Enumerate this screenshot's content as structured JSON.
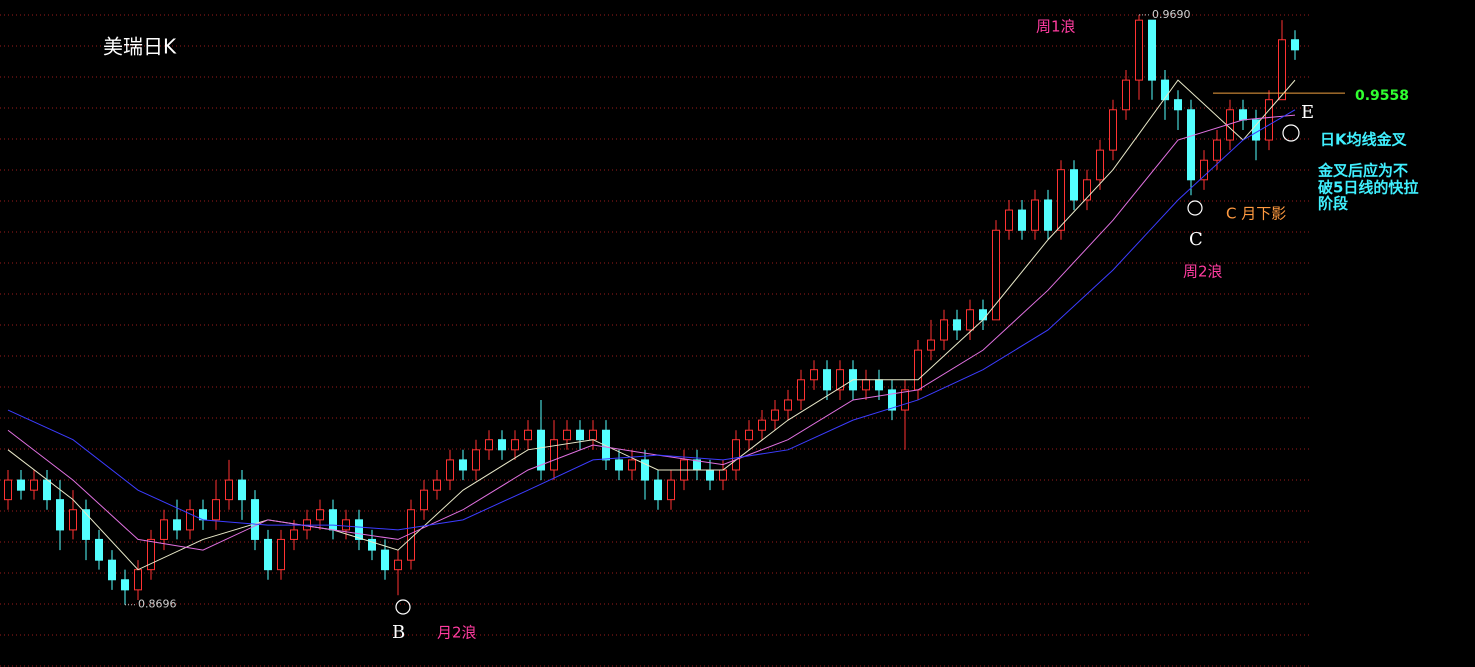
{
  "chart_data": {
    "type": "candlestick",
    "title": "美瑞日K",
    "ylim": [
      0.8591,
      0.9715
    ],
    "grid": true,
    "up_color": "#ff3232",
    "down_color": "#54ffff",
    "ohlc": [
      [
        0.8873,
        0.8923,
        0.8856,
        0.8906
      ],
      [
        0.8906,
        0.8923,
        0.8873,
        0.8889
      ],
      [
        0.8889,
        0.8923,
        0.8873,
        0.8906
      ],
      [
        0.8906,
        0.8923,
        0.8856,
        0.8873
      ],
      [
        0.8873,
        0.8906,
        0.8788,
        0.8822
      ],
      [
        0.8822,
        0.8889,
        0.8806,
        0.8856
      ],
      [
        0.8856,
        0.8873,
        0.8771,
        0.8806
      ],
      [
        0.8806,
        0.8822,
        0.8755,
        0.8771
      ],
      [
        0.8771,
        0.8788,
        0.8721,
        0.8738
      ],
      [
        0.8738,
        0.8755,
        0.8696,
        0.8721
      ],
      [
        0.8721,
        0.8771,
        0.8704,
        0.8755
      ],
      [
        0.8755,
        0.8822,
        0.8738,
        0.8806
      ],
      [
        0.8806,
        0.8856,
        0.8788,
        0.8839
      ],
      [
        0.8839,
        0.8873,
        0.8806,
        0.8822
      ],
      [
        0.8822,
        0.8873,
        0.8806,
        0.8856
      ],
      [
        0.8856,
        0.8873,
        0.8822,
        0.8839
      ],
      [
        0.8839,
        0.8906,
        0.8822,
        0.8873
      ],
      [
        0.8873,
        0.894,
        0.8856,
        0.8906
      ],
      [
        0.8906,
        0.8923,
        0.8839,
        0.8873
      ],
      [
        0.8873,
        0.8889,
        0.8788,
        0.8806
      ],
      [
        0.8806,
        0.8822,
        0.8738,
        0.8755
      ],
      [
        0.8755,
        0.8822,
        0.8738,
        0.8806
      ],
      [
        0.8806,
        0.8839,
        0.8788,
        0.8822
      ],
      [
        0.8822,
        0.8856,
        0.8806,
        0.8839
      ],
      [
        0.8839,
        0.8873,
        0.8822,
        0.8856
      ],
      [
        0.8856,
        0.8873,
        0.8806,
        0.8822
      ],
      [
        0.8822,
        0.8856,
        0.8806,
        0.8839
      ],
      [
        0.8839,
        0.8856,
        0.8788,
        0.8806
      ],
      [
        0.8806,
        0.8822,
        0.8771,
        0.8788
      ],
      [
        0.8788,
        0.8806,
        0.8738,
        0.8755
      ],
      [
        0.8755,
        0.8788,
        0.8712,
        0.8771
      ],
      [
        0.8771,
        0.8873,
        0.8755,
        0.8856
      ],
      [
        0.8856,
        0.8906,
        0.8839,
        0.8889
      ],
      [
        0.8889,
        0.8923,
        0.8873,
        0.8906
      ],
      [
        0.8906,
        0.8957,
        0.8889,
        0.894
      ],
      [
        0.894,
        0.8957,
        0.8906,
        0.8923
      ],
      [
        0.8923,
        0.8974,
        0.8906,
        0.8957
      ],
      [
        0.8957,
        0.899,
        0.894,
        0.8974
      ],
      [
        0.8974,
        0.899,
        0.894,
        0.8957
      ],
      [
        0.8957,
        0.899,
        0.894,
        0.8974
      ],
      [
        0.8974,
        0.9007,
        0.8957,
        0.899
      ],
      [
        0.899,
        0.9041,
        0.8906,
        0.8923
      ],
      [
        0.8923,
        0.9007,
        0.8906,
        0.8974
      ],
      [
        0.8974,
        0.9007,
        0.8957,
        0.899
      ],
      [
        0.899,
        0.9007,
        0.8957,
        0.8974
      ],
      [
        0.8974,
        0.9007,
        0.8957,
        0.899
      ],
      [
        0.899,
        0.9007,
        0.8923,
        0.894
      ],
      [
        0.894,
        0.8957,
        0.8906,
        0.8923
      ],
      [
        0.8923,
        0.8957,
        0.8906,
        0.894
      ],
      [
        0.894,
        0.8957,
        0.8873,
        0.8906
      ],
      [
        0.8906,
        0.8923,
        0.8856,
        0.8873
      ],
      [
        0.8873,
        0.8923,
        0.8856,
        0.8906
      ],
      [
        0.8906,
        0.8957,
        0.8889,
        0.894
      ],
      [
        0.894,
        0.8957,
        0.8906,
        0.8923
      ],
      [
        0.8923,
        0.894,
        0.8889,
        0.8906
      ],
      [
        0.8906,
        0.894,
        0.8889,
        0.8923
      ],
      [
        0.8923,
        0.899,
        0.8906,
        0.8974
      ],
      [
        0.8974,
        0.9007,
        0.8957,
        0.899
      ],
      [
        0.899,
        0.9024,
        0.8974,
        0.9007
      ],
      [
        0.9007,
        0.9041,
        0.899,
        0.9024
      ],
      [
        0.9024,
        0.9058,
        0.9007,
        0.9041
      ],
      [
        0.9041,
        0.9092,
        0.9024,
        0.9075
      ],
      [
        0.9075,
        0.9108,
        0.9058,
        0.9092
      ],
      [
        0.9092,
        0.9108,
        0.9041,
        0.9058
      ],
      [
        0.9058,
        0.9108,
        0.9041,
        0.9092
      ],
      [
        0.9092,
        0.9108,
        0.9041,
        0.9058
      ],
      [
        0.9058,
        0.9092,
        0.9041,
        0.9075
      ],
      [
        0.9075,
        0.9092,
        0.9041,
        0.9058
      ],
      [
        0.9058,
        0.9075,
        0.9007,
        0.9024
      ],
      [
        0.9024,
        0.9075,
        0.8957,
        0.9058
      ],
      [
        0.9058,
        0.9142,
        0.9041,
        0.9125
      ],
      [
        0.9125,
        0.9176,
        0.9108,
        0.9142
      ],
      [
        0.9142,
        0.9193,
        0.9125,
        0.9176
      ],
      [
        0.9176,
        0.9193,
        0.9142,
        0.9159
      ],
      [
        0.9159,
        0.921,
        0.9142,
        0.9193
      ],
      [
        0.9193,
        0.921,
        0.9159,
        0.9176
      ],
      [
        0.9176,
        0.9344,
        0.9176,
        0.9327
      ],
      [
        0.9327,
        0.9378,
        0.9311,
        0.9361
      ],
      [
        0.9361,
        0.9378,
        0.9311,
        0.9327
      ],
      [
        0.9327,
        0.9395,
        0.9311,
        0.9378
      ],
      [
        0.9378,
        0.9395,
        0.9311,
        0.9327
      ],
      [
        0.9327,
        0.9445,
        0.9311,
        0.9429
      ],
      [
        0.9429,
        0.9445,
        0.9361,
        0.9378
      ],
      [
        0.9378,
        0.9429,
        0.9361,
        0.9412
      ],
      [
        0.9412,
        0.9479,
        0.9395,
        0.9462
      ],
      [
        0.9462,
        0.9547,
        0.9445,
        0.953
      ],
      [
        0.953,
        0.9597,
        0.9513,
        0.958
      ],
      [
        0.958,
        0.969,
        0.9547,
        0.9681
      ],
      [
        0.9681,
        0.9681,
        0.9547,
        0.958
      ],
      [
        0.958,
        0.9597,
        0.9513,
        0.9547
      ],
      [
        0.9547,
        0.9563,
        0.9496,
        0.953
      ],
      [
        0.953,
        0.9547,
        0.9386,
        0.9412
      ],
      [
        0.9412,
        0.9462,
        0.9395,
        0.9445
      ],
      [
        0.9445,
        0.9496,
        0.9429,
        0.9479
      ],
      [
        0.9479,
        0.9547,
        0.9462,
        0.953
      ],
      [
        0.953,
        0.9547,
        0.9496,
        0.9513
      ],
      [
        0.9513,
        0.953,
        0.9445,
        0.9479
      ],
      [
        0.9479,
        0.9563,
        0.9462,
        0.9547
      ],
      [
        0.9547,
        0.9681,
        0.9547,
        0.9648
      ],
      [
        0.9648,
        0.9664,
        0.9614,
        0.9631
      ]
    ],
    "series": [
      {
        "color": "#e8e8c8",
        "x": [
          0,
          5,
          10,
          15,
          20,
          25,
          30,
          35,
          40,
          45,
          50,
          55,
          60,
          65,
          70,
          75,
          80,
          85,
          90,
          95,
          99
        ],
        "values": [
          0.8957,
          0.8873,
          0.8755,
          0.8806,
          0.8839,
          0.8822,
          0.8788,
          0.8889,
          0.8957,
          0.8974,
          0.8923,
          0.8923,
          0.9007,
          0.9075,
          0.9075,
          0.9176,
          0.9311,
          0.9429,
          0.958,
          0.9479,
          0.958
        ]
      },
      {
        "color": "#e070e0",
        "x": [
          0,
          5,
          10,
          15,
          20,
          25,
          30,
          35,
          40,
          45,
          50,
          55,
          60,
          65,
          70,
          75,
          80,
          85,
          90,
          95,
          99
        ],
        "values": [
          0.899,
          0.8906,
          0.8806,
          0.8788,
          0.8839,
          0.8822,
          0.8806,
          0.8856,
          0.8923,
          0.8965,
          0.8948,
          0.8932,
          0.8974,
          0.9041,
          0.9058,
          0.9125,
          0.9226,
          0.9344,
          0.9479,
          0.9513,
          0.9521
        ]
      },
      {
        "color": "#3c3cff",
        "x": [
          0,
          5,
          10,
          15,
          20,
          25,
          30,
          35,
          40,
          45,
          50,
          55,
          60,
          65,
          70,
          75,
          80,
          85,
          90,
          95,
          99
        ],
        "values": [
          0.9024,
          0.8974,
          0.8889,
          0.8839,
          0.883,
          0.883,
          0.8822,
          0.8839,
          0.8889,
          0.894,
          0.8948,
          0.894,
          0.8957,
          0.9007,
          0.9041,
          0.9092,
          0.9159,
          0.926,
          0.9378,
          0.9479,
          0.953
        ]
      }
    ],
    "extremes": [
      {
        "value": 0.969,
        "label": "0.9690"
      },
      {
        "value": 0.8696,
        "label": "0.8696"
      }
    ],
    "level": {
      "value": 0.9558,
      "label": "0.9558",
      "color": "#f0a040"
    },
    "annotations": {
      "wave_week1": "周1浪",
      "wave_week2": "周2浪",
      "wave_month2": "月2浪",
      "point_b": "B",
      "point_c": "C",
      "point_e": "E",
      "c_note": "C 月下影",
      "cross_note": "日K均线金叉",
      "cross_detail": [
        "金叉后应为不",
        "破5日线的快拉",
        "阶段"
      ]
    }
  }
}
